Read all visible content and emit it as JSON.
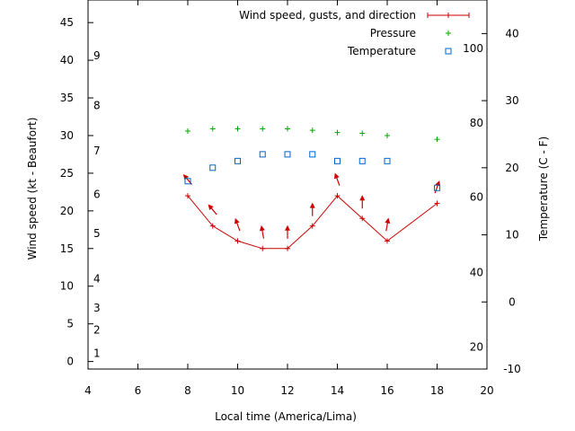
{
  "chart_data": {
    "type": "line",
    "xlabel": "Local time (America/Lima)",
    "ylabel": "Wind speed (kt - Beaufort)",
    "y2label": "Temperature (C - F)",
    "xlim": [
      4,
      20
    ],
    "ylim": [
      -1,
      48
    ],
    "y2lim": [
      -10,
      45
    ],
    "x_ticks": [
      "4",
      "6",
      "8",
      "10",
      "12",
      "14",
      "16",
      "18",
      "20"
    ],
    "y_ticks": [
      "0",
      "5",
      "10",
      "15",
      "20",
      "25",
      "30",
      "35",
      "40",
      "45"
    ],
    "y2_ticks": [
      "-10",
      "0",
      "10",
      "20",
      "30",
      "40"
    ],
    "beaufort_labels": [
      {
        "text": "1",
        "y": 1.1
      },
      {
        "text": "2",
        "y": 4.2
      },
      {
        "text": "3",
        "y": 7.1
      },
      {
        "text": "4",
        "y": 11.0
      },
      {
        "text": "5",
        "y": 17.0
      },
      {
        "text": "6",
        "y": 22.2
      },
      {
        "text": "7",
        "y": 28.0
      },
      {
        "text": "8",
        "y": 34.0
      },
      {
        "text": "9",
        "y": 40.6
      }
    ],
    "fahrenheit_labels": [
      {
        "text": "20",
        "c": -6.7
      },
      {
        "text": "40",
        "c": 4.4
      },
      {
        "text": "60",
        "c": 15.6
      },
      {
        "text": "80",
        "c": 26.7
      },
      {
        "text": "100",
        "c": 37.8
      }
    ],
    "legend_position": "top-right",
    "series": [
      {
        "name": "Wind speed, gusts, and direction",
        "color": "#cc0000",
        "x": [
          8,
          9,
          10,
          11,
          12,
          13,
          14,
          15,
          16,
          18
        ],
        "y": [
          22,
          18,
          16,
          15,
          15,
          18,
          22,
          19,
          16,
          21
        ]
      },
      {
        "name": "Pressure",
        "color": "#00aa00",
        "x": [
          8,
          9,
          10,
          11,
          12,
          13,
          14,
          15,
          16,
          18
        ],
        "y": [
          30.6,
          30.9,
          30.9,
          30.9,
          30.9,
          30.7,
          30.4,
          30.3,
          30.0,
          29.5
        ]
      },
      {
        "name": "Temperature",
        "color": "#0066cc",
        "x": [
          8,
          9,
          10,
          11,
          12,
          13,
          14,
          15,
          16,
          18
        ],
        "y": [
          18,
          20,
          21,
          22,
          22,
          22,
          21,
          21,
          21,
          17
        ]
      }
    ],
    "wind_direction_deg": [
      320,
      320,
      340,
      350,
      0,
      0,
      340,
      0,
      10,
      20
    ]
  }
}
